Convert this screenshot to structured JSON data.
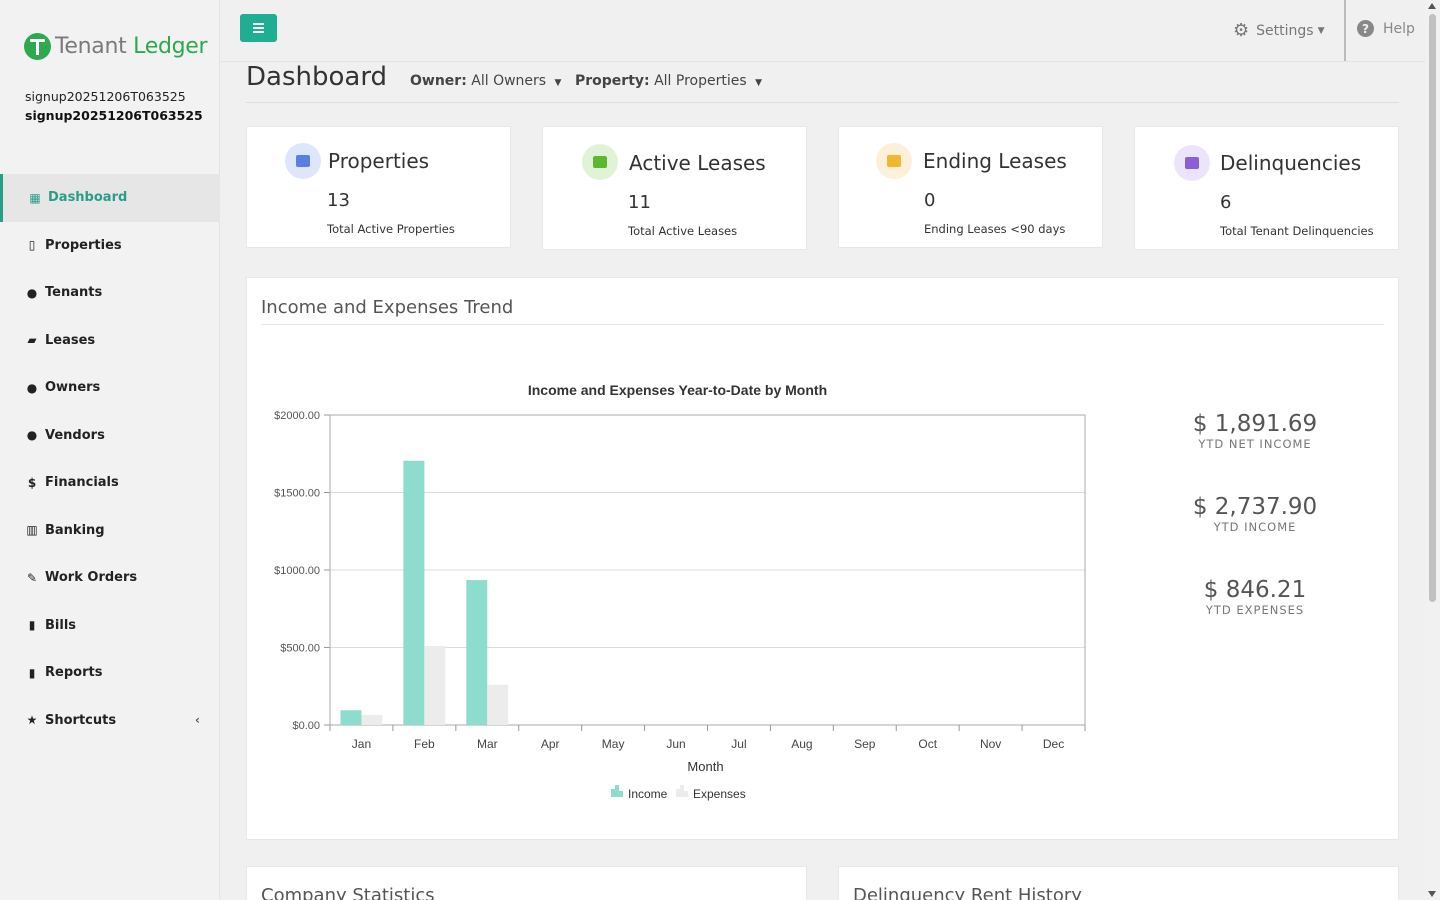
{
  "app": {
    "logo_part1": "Tenant",
    "logo_part2": "Ledger",
    "user_line1": "signup20251206T063525",
    "user_line2": "signup20251206T063525"
  },
  "sidebar": {
    "items": [
      {
        "label": "Dashboard",
        "icon": "grid-icon",
        "glyph": "▦",
        "active": true
      },
      {
        "label": "Properties",
        "icon": "building-icon",
        "glyph": "▯"
      },
      {
        "label": "Tenants",
        "icon": "user-icon",
        "glyph": "●"
      },
      {
        "label": "Leases",
        "icon": "folder-open-icon",
        "glyph": "▰"
      },
      {
        "label": "Owners",
        "icon": "users-icon",
        "glyph": "●"
      },
      {
        "label": "Vendors",
        "icon": "users-icon",
        "glyph": "●"
      },
      {
        "label": "Financials",
        "icon": "dollar-icon",
        "glyph": "$"
      },
      {
        "label": "Banking",
        "icon": "bank-icon",
        "glyph": "▥"
      },
      {
        "label": "Work Orders",
        "icon": "edit-icon",
        "glyph": "✎"
      },
      {
        "label": "Bills",
        "icon": "file-icon",
        "glyph": "▮"
      },
      {
        "label": "Reports",
        "icon": "report-icon",
        "glyph": "▮"
      },
      {
        "label": "Shortcuts",
        "icon": "star-icon",
        "glyph": "★"
      }
    ]
  },
  "topbar": {
    "settings_label": "Settings",
    "help_label": "Help"
  },
  "header": {
    "title": "Dashboard",
    "owner_label": "Owner:",
    "owner_value": "All Owners",
    "property_label": "Property:",
    "property_value": "All Properties"
  },
  "cards": [
    {
      "title": "Properties",
      "value": "13",
      "sub": "Total Active Properties",
      "icon": "building-icon",
      "icon_bg": "#dde6fb",
      "icon_color": "#5b7fe0"
    },
    {
      "title": "Active Leases",
      "value": "11",
      "sub": "Total Active Leases",
      "icon": "folder-icon",
      "icon_bg": "#e0f3d6",
      "icon_color": "#5cb82e"
    },
    {
      "title": "Ending Leases",
      "value": "0",
      "sub": "Ending Leases <90 days",
      "icon": "folder-outline-icon",
      "icon_bg": "#fdf0d8",
      "icon_color": "#f0b730"
    },
    {
      "title": "Delinquencies",
      "value": "6",
      "sub": "Total Tenant Delinquencies",
      "icon": "calendar-x-icon",
      "icon_bg": "#ece4fb",
      "icon_color": "#8b5fd8"
    }
  ],
  "trend_panel": {
    "title": "Income and Expenses Trend"
  },
  "ytd": [
    {
      "value": "$ 1,891.69",
      "label": "YTD NET INCOME"
    },
    {
      "value": "$ 2,737.90",
      "label": "YTD INCOME"
    },
    {
      "value": "$ 846.21",
      "label": "YTD EXPENSES"
    }
  ],
  "bottom_panels": {
    "left_title": "Company Statistics",
    "right_title": "Delinquency Rent History"
  },
  "chart_data": {
    "type": "bar",
    "title": "Income and Expenses Year-to-Date by Month",
    "xlabel": "Month",
    "ylabel": "",
    "categories": [
      "Jan",
      "Feb",
      "Mar",
      "Apr",
      "May",
      "Jun",
      "Jul",
      "Aug",
      "Sep",
      "Oct",
      "Nov",
      "Dec"
    ],
    "series": [
      {
        "name": "Income",
        "color": "#8ddccd",
        "values": [
          95,
          1705,
          935,
          0,
          0,
          0,
          0,
          0,
          0,
          0,
          0,
          0
        ]
      },
      {
        "name": "Expenses",
        "color": "#ececec",
        "values": [
          65,
          510,
          260,
          0,
          0,
          0,
          0,
          0,
          0,
          0,
          0,
          0
        ]
      }
    ],
    "yticks": [
      "$0.00",
      "$500.00",
      "$1000.00",
      "$1500.00",
      "$2000.00"
    ],
    "ylim": [
      0,
      2000
    ],
    "grid": true,
    "legend": "bottom"
  }
}
